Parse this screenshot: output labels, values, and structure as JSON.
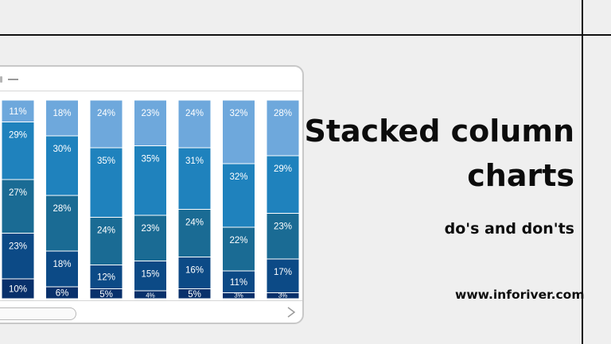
{
  "heading": {
    "title": "Stacked column\ncharts",
    "subtitle": "do's and don'ts"
  },
  "footer": {
    "website": "www.inforiver.com"
  },
  "colors": {
    "background": "#efefef",
    "segments": [
      "#08306b",
      "#0c4a86",
      "#1a6b94",
      "#1f82bd",
      "#6ea8dc"
    ]
  },
  "chart_data": {
    "type": "bar",
    "stacked": true,
    "percent_stacked": true,
    "categories": [
      "",
      "",
      "",
      "",
      "",
      "",
      ""
    ],
    "series": [
      {
        "values": [
          10,
          6,
          5,
          4,
          5,
          3,
          3
        ]
      },
      {
        "values": [
          23,
          18,
          12,
          15,
          16,
          11,
          17
        ]
      },
      {
        "values": [
          27,
          28,
          24,
          23,
          24,
          22,
          23
        ]
      },
      {
        "values": [
          29,
          30,
          35,
          35,
          31,
          32,
          29
        ]
      },
      {
        "values": [
          11,
          18,
          24,
          23,
          24,
          32,
          28
        ]
      }
    ],
    "data_labels": [
      [
        "10%",
        "6%",
        "5%",
        "4%",
        "5%",
        "3%",
        "3%"
      ],
      [
        "23%",
        "18%",
        "12%",
        "15%",
        "16%",
        "11%",
        "17%"
      ],
      [
        "27%",
        "28%",
        "24%",
        "23%",
        "24%",
        "22%",
        "23%"
      ],
      [
        "29%",
        "30%",
        "35%",
        "35%",
        "31%",
        "32%",
        "29%"
      ],
      [
        "11%",
        "18%",
        "24%",
        "23%",
        "24%",
        "32%",
        "28%"
      ]
    ],
    "ylim": [
      0,
      100
    ],
    "grid": false,
    "legend": "none"
  }
}
